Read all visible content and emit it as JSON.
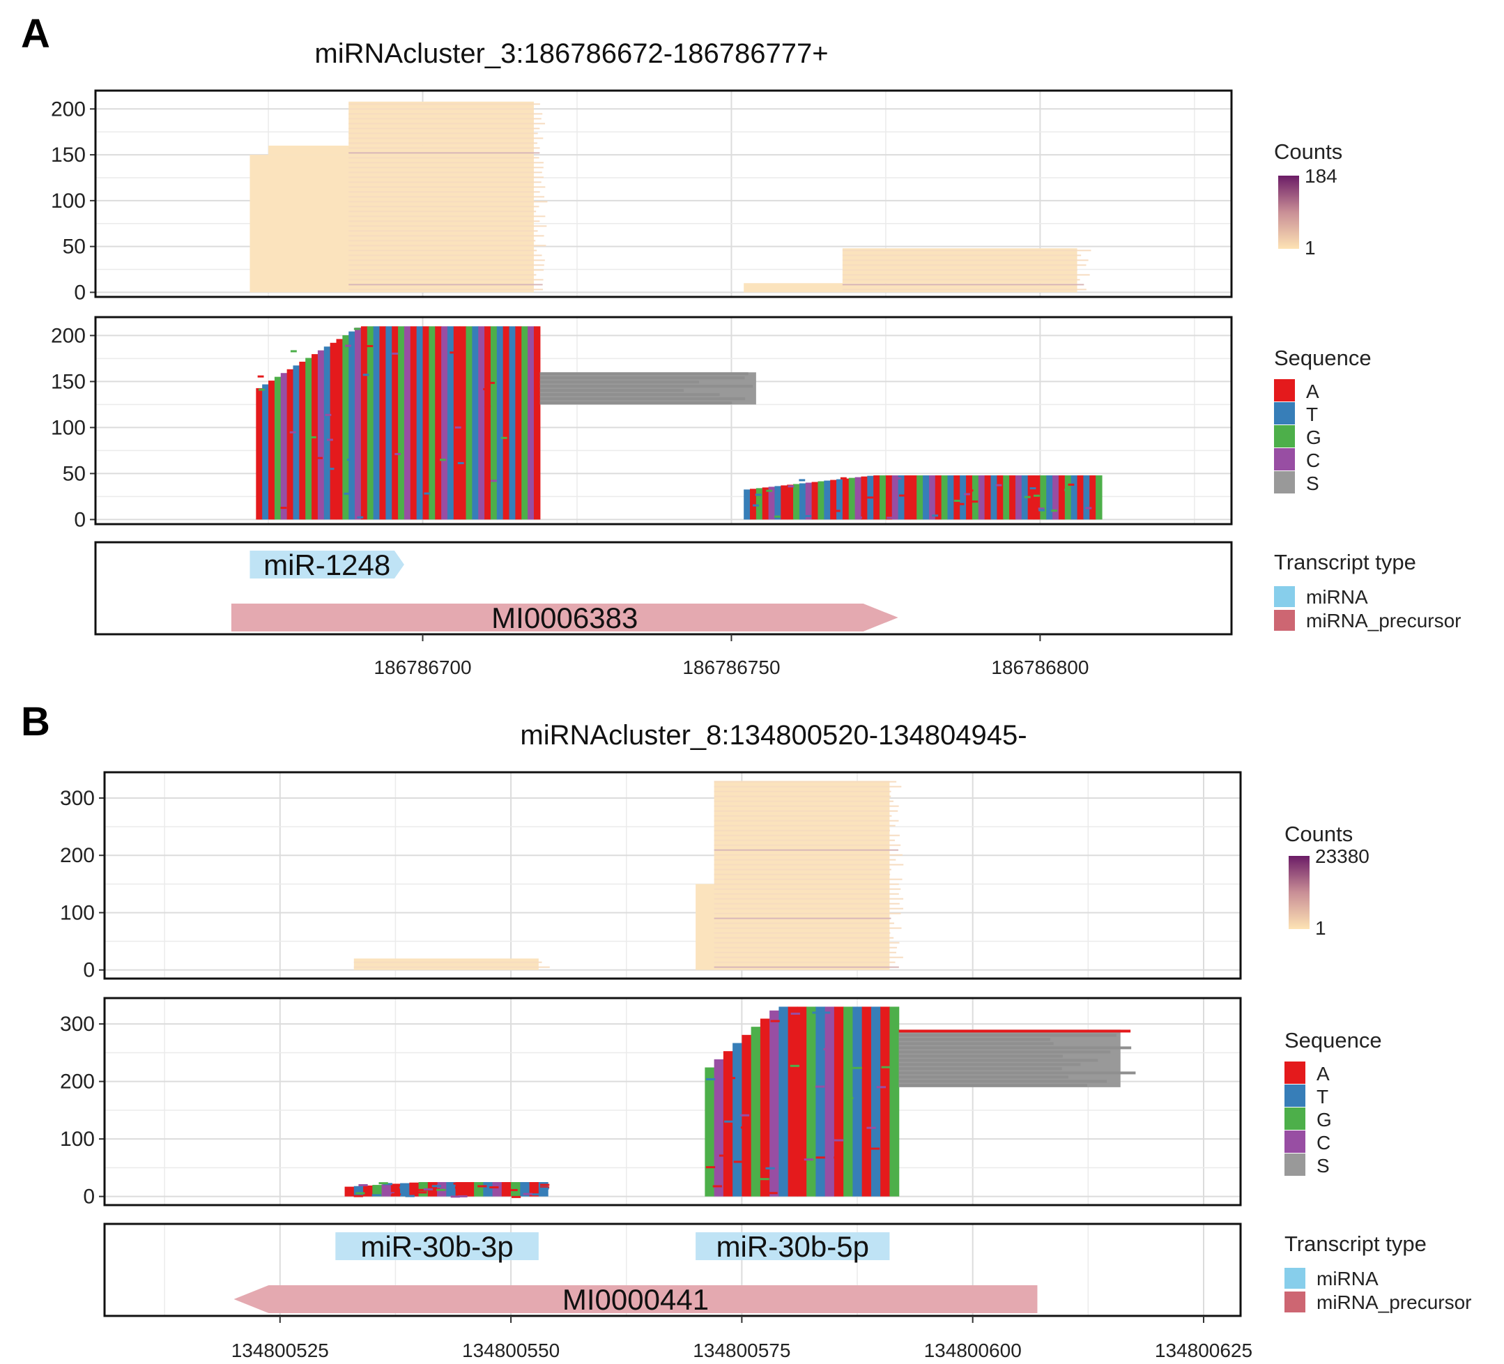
{
  "chart_data": [
    {
      "panel": "A",
      "type": "genome-track",
      "title": "miRNAcluster_3:186786672-186786777+",
      "strand": "+",
      "xlim": [
        186786647,
        186786831
      ],
      "xticks": [
        186786700,
        186786750,
        186786800
      ],
      "xtick_labels": [
        "186786700",
        "186786750",
        "186786800"
      ],
      "grid": true,
      "counts_track": {
        "ylim": [
          -5,
          220
        ],
        "yticks": [
          0,
          50,
          100,
          150,
          200
        ],
        "ytick_labels": [
          "0",
          "50",
          "100",
          "150",
          "200"
        ],
        "legend_title": "Counts",
        "legend_max": "184",
        "legend_min": "1",
        "clusters": [
          {
            "x_start": [
              186786672,
              186786675,
              186786688,
              186786696
            ],
            "x_end": 186786718,
            "y_levels": [
              0,
              150,
              160,
              208
            ]
          },
          {
            "x_start": [
              186786752,
              186786768,
              186786775
            ],
            "x_end": 186786806,
            "y_levels": [
              0,
              10,
              48
            ]
          }
        ]
      },
      "sequence_track": {
        "ylim": [
          -5,
          220
        ],
        "yticks": [
          0,
          50,
          100,
          150,
          200
        ],
        "ytick_labels": [
          "0",
          "50",
          "100",
          "150",
          "200"
        ],
        "legend_title": "Sequence",
        "legend_items": [
          {
            "label": "A",
            "color": "#e41a1c"
          },
          {
            "label": "T",
            "color": "#377eb8"
          },
          {
            "label": "G",
            "color": "#4daf4a"
          },
          {
            "label": "C",
            "color": "#984ea3"
          },
          {
            "label": "S",
            "color": "#999999"
          }
        ],
        "clusters": [
          {
            "x_start": 186786673,
            "x_end": 186786719,
            "y_top": 210,
            "y_bottom": 0
          },
          {
            "x_start": 186786719,
            "x_end": 186786754,
            "y_top": 160,
            "y_bottom": 125,
            "soft_clip": true
          },
          {
            "x_start": 186786752,
            "x_end": 186786810,
            "y_top": 48,
            "y_bottom": 0
          }
        ]
      },
      "annotation_track": {
        "legend_title": "Transcript type",
        "legend_items": [
          {
            "label": "miRNA",
            "color": "#87ceeb"
          },
          {
            "label": "miRNA_precursor",
            "color": "#cd6672"
          }
        ],
        "features": [
          {
            "label": "miR-1248",
            "type": "miRNA",
            "start": 186786672,
            "end": 186786697,
            "strand": "+",
            "row": 0
          },
          {
            "label": "MI0006383",
            "type": "miRNA_precursor",
            "start": 186786669,
            "end": 186786777,
            "strand": "+",
            "row": 1
          }
        ]
      }
    },
    {
      "panel": "B",
      "type": "genome-track",
      "title": "miRNAcluster_8:134800520-134804945-",
      "strand": "-",
      "xlim": [
        134800506,
        134800629
      ],
      "xticks": [
        134800525,
        134800550,
        134800575,
        134800600,
        134800625
      ],
      "xtick_labels": [
        "134800525",
        "134800550",
        "134800575",
        "134800600",
        "134800625"
      ],
      "grid": true,
      "counts_track": {
        "ylim": [
          -15,
          345
        ],
        "yticks": [
          0,
          100,
          200,
          300
        ],
        "ytick_labels": [
          "0",
          "100",
          "200",
          "300"
        ],
        "legend_title": "Counts",
        "legend_max": "23380",
        "legend_min": "1",
        "clusters": [
          {
            "x_start": [
              134800533,
              134800534
            ],
            "x_end": 134800553,
            "y_levels": [
              0,
              20
            ]
          },
          {
            "x_start": [
              134800570,
              134800572,
              134800576
            ],
            "x_end": 134800591,
            "y_levels": [
              0,
              150,
              330
            ]
          }
        ]
      },
      "sequence_track": {
        "ylim": [
          -15,
          345
        ],
        "yticks": [
          0,
          100,
          200,
          300
        ],
        "ytick_labels": [
          "0",
          "100",
          "200",
          "300"
        ],
        "legend_title": "Sequence",
        "legend_items": [
          {
            "label": "A",
            "color": "#e41a1c"
          },
          {
            "label": "T",
            "color": "#377eb8"
          },
          {
            "label": "G",
            "color": "#4daf4a"
          },
          {
            "label": "C",
            "color": "#984ea3"
          },
          {
            "label": "S",
            "color": "#999999"
          }
        ],
        "clusters": [
          {
            "x_start": 134800532,
            "x_end": 134800554,
            "y_top": 25,
            "y_bottom": 0
          },
          {
            "x_start": 134800571,
            "x_end": 134800592,
            "y_top": 330,
            "y_bottom": 0
          },
          {
            "x_start": 134800592,
            "x_end": 134800616,
            "y_top": 290,
            "y_bottom": 190,
            "soft_clip": true
          }
        ]
      },
      "annotation_track": {
        "legend_title": "Transcript type",
        "legend_items": [
          {
            "label": "miRNA",
            "color": "#87ceeb"
          },
          {
            "label": "miRNA_precursor",
            "color": "#cd6672"
          }
        ],
        "features": [
          {
            "label": "miR-30b-3p",
            "type": "miRNA",
            "start": 134800531,
            "end": 134800553,
            "strand": "-",
            "row": 0
          },
          {
            "label": "miR-30b-5p",
            "type": "miRNA",
            "start": 134800570,
            "end": 134800591,
            "strand": "-",
            "row": 0
          },
          {
            "label": "MI0000441",
            "type": "miRNA_precursor",
            "start": 134800520,
            "end": 134800607,
            "strand": "-",
            "row": 1
          }
        ]
      }
    }
  ]
}
